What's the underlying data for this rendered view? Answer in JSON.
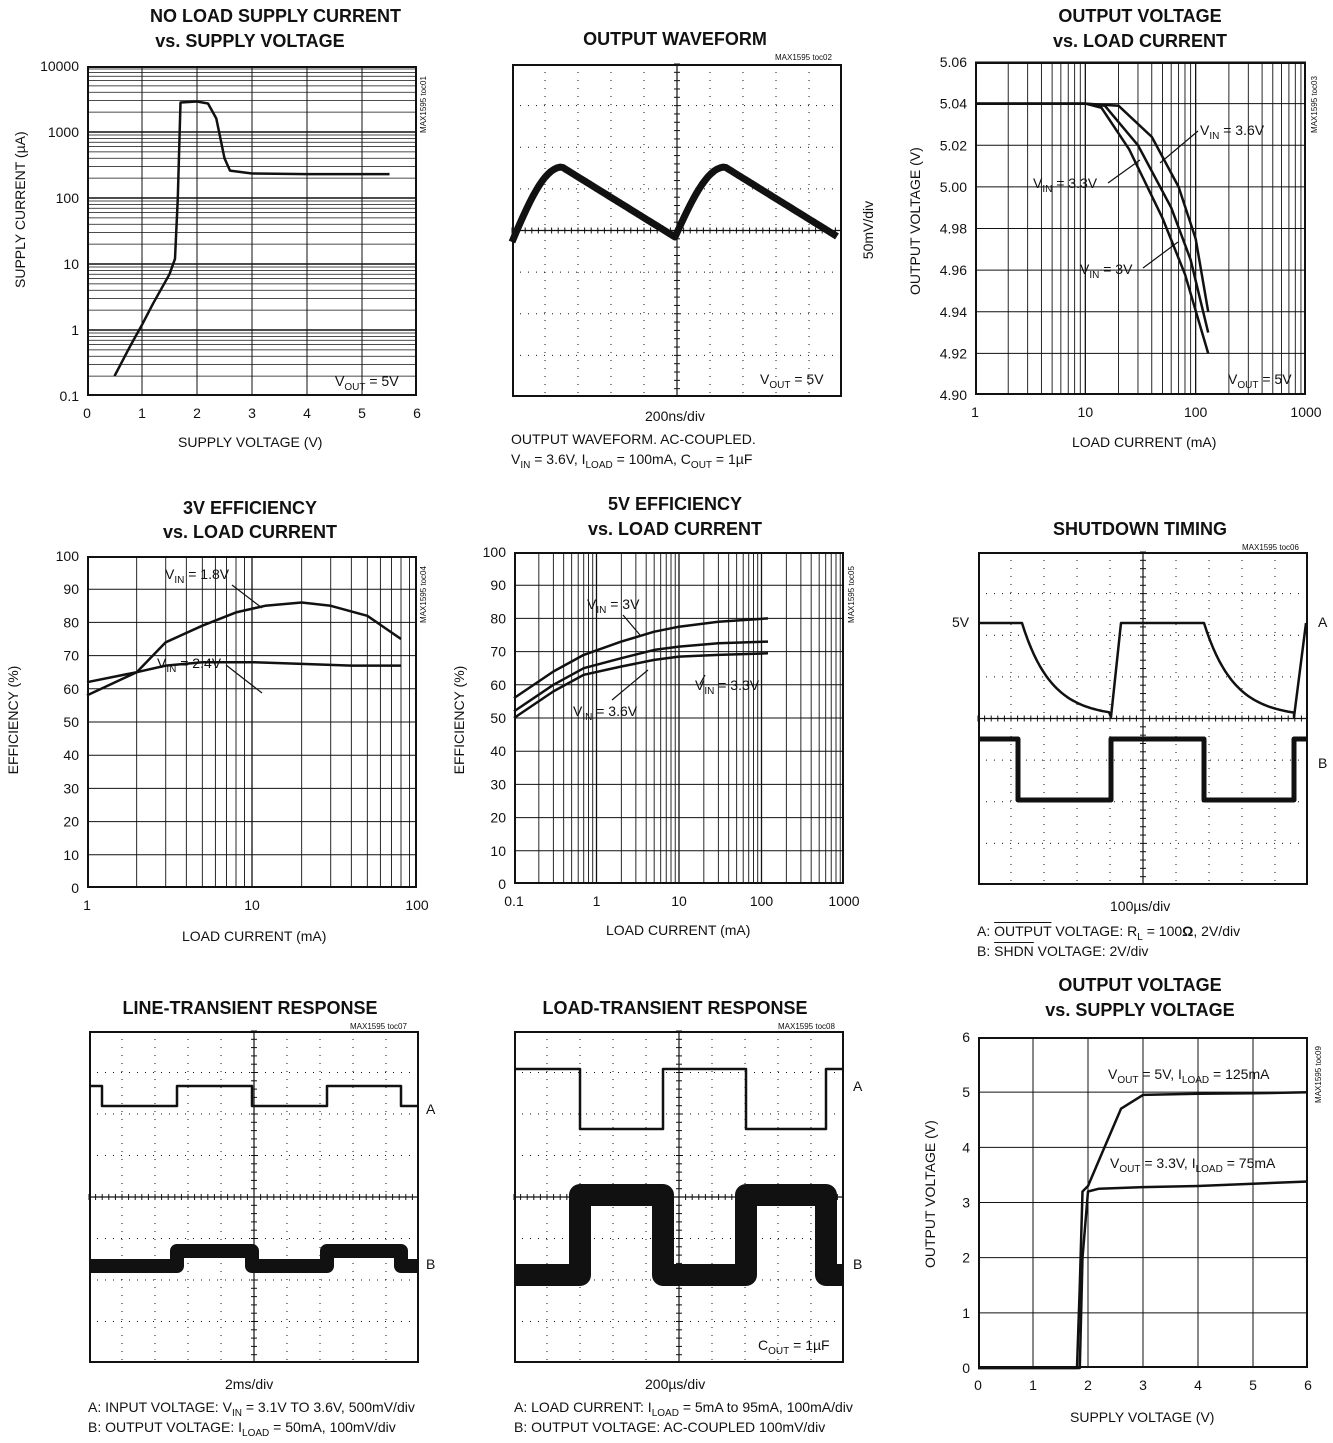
{
  "charts": {
    "toc01": {
      "title_l1": "NO LOAD SUPPLY CURRENT",
      "title_l2": "vs. SUPPLY VOLTAGE",
      "toc": "MAX1595 toc01",
      "xlabel": "SUPPLY VOLTAGE (V)",
      "ylabel": "SUPPLY CURRENT (µA)",
      "xticks": [
        "0",
        "1",
        "2",
        "3",
        "4",
        "5",
        "6"
      ],
      "yticks": [
        "10000",
        "1000",
        "100",
        "10",
        "1",
        "0.1"
      ],
      "note": "VOUT = 5V"
    },
    "toc02": {
      "title": "OUTPUT WAVEFORM",
      "toc": "MAX1595 toc02",
      "scale_right": "50mV/div",
      "timebase": "200ns/div",
      "note": "VOUT = 5V",
      "cap1": "OUTPUT WAVEFORM. AC-COUPLED.",
      "cap2": "VIN = 3.6V, ILOAD = 100mA, COUT = 1µF"
    },
    "toc03": {
      "title_l1": "OUTPUT VOLTAGE",
      "title_l2": "vs. LOAD CURRENT",
      "toc": "MAX1595 toc03",
      "xlabel": "LOAD CURRENT (mA)",
      "ylabel": "OUTPUT VOLTAGE (V)",
      "xticks": [
        "1",
        "10",
        "100",
        "1000"
      ],
      "yticks": [
        "5.06",
        "5.04",
        "5.02",
        "5.00",
        "4.98",
        "4.96",
        "4.94",
        "4.92",
        "4.90"
      ],
      "note": "VOUT = 5V"
    },
    "toc04": {
      "title_l1": "3V EFFICIENCY",
      "title_l2": "vs. LOAD CURRENT",
      "toc": "MAX1595 toc04",
      "xlabel": "LOAD CURRENT (mA)",
      "ylabel": "EFFICIENCY (%)",
      "xticks": [
        "1",
        "10",
        "100"
      ],
      "yticks": [
        "100",
        "90",
        "80",
        "70",
        "60",
        "50",
        "40",
        "30",
        "20",
        "10",
        "0"
      ]
    },
    "toc05": {
      "title_l1": "5V EFFICIENCY",
      "title_l2": "vs. LOAD CURRENT",
      "toc": "MAX1595 toc05",
      "xlabel": "LOAD CURRENT (mA)",
      "ylabel": "EFFICIENCY (%)",
      "xticks": [
        "0.1",
        "1",
        "10",
        "100",
        "1000"
      ],
      "yticks": [
        "100",
        "90",
        "80",
        "70",
        "60",
        "50",
        "40",
        "30",
        "20",
        "10",
        "0"
      ]
    },
    "toc06": {
      "title": "SHUTDOWN TIMING",
      "toc": "MAX1595 toc06",
      "level_5v": "5V",
      "ch_a": "A",
      "ch_b": "B",
      "timebase": "100µs/div",
      "cap1": "A: OUTPUT VOLTAGE: RL = 100Ω, 2V/div",
      "cap2": "B: SHDN VOLTAGE: 2V/div"
    },
    "toc07": {
      "title": "LINE-TRANSIENT RESPONSE",
      "toc": "MAX1595 toc07",
      "ch_a": "A",
      "ch_b": "B",
      "timebase": "2ms/div",
      "cap1": "A: INPUT VOLTAGE: VIN = 3.1V TO 3.6V, 500mV/div",
      "cap2": "B: OUTPUT VOLTAGE: ILOAD = 50mA, 100mV/div"
    },
    "toc08": {
      "title": "LOAD-TRANSIENT RESPONSE",
      "toc": "MAX1595 toc08",
      "ch_a": "A",
      "ch_b": "B",
      "note": "COUT = 1µF",
      "timebase": "200µs/div",
      "cap1": "A: LOAD CURRENT: ILOAD = 5mA to 95mA, 100mA/div",
      "cap2": "B: OUTPUT VOLTAGE: AC-COUPLED 100mV/div"
    },
    "toc09": {
      "title_l1": "OUTPUT VOLTAGE",
      "title_l2": "vs. SUPPLY VOLTAGE",
      "toc": "MAX1595 toc09",
      "xlabel": "SUPPLY VOLTAGE (V)",
      "ylabel": "OUTPUT VOLTAGE (V)",
      "xticks": [
        "0",
        "1",
        "2",
        "3",
        "4",
        "5",
        "6"
      ],
      "yticks": [
        "6",
        "5",
        "4",
        "3",
        "2",
        "1",
        "0"
      ]
    }
  },
  "chart_data": [
    {
      "type": "line",
      "title": "NO LOAD SUPPLY CURRENT vs. SUPPLY VOLTAGE",
      "xlabel": "SUPPLY VOLTAGE (V)",
      "ylabel": "SUPPLY CURRENT (µA)",
      "xlim": [
        0,
        6
      ],
      "ylim": [
        0.1,
        10000
      ],
      "yscale": "log",
      "series": [
        {
          "name": "VOUT = 5V",
          "x": [
            0.5,
            0.8,
            1.0,
            1.2,
            1.5,
            1.6,
            1.65,
            1.7,
            2.0,
            2.2,
            2.35,
            2.5,
            2.6,
            3.0,
            4.0,
            5.0,
            5.5
          ],
          "y": [
            0.2,
            0.6,
            1.2,
            2.5,
            7,
            12,
            100,
            2800,
            2900,
            2700,
            1600,
            400,
            260,
            235,
            230,
            230,
            230
          ]
        }
      ]
    },
    {
      "type": "line",
      "title": "OUTPUT WAVEFORM",
      "xlabel": "200ns/div",
      "ylabel": "50mV/div",
      "note": "AC-coupled"
    },
    {
      "type": "line",
      "title": "OUTPUT VOLTAGE vs. LOAD CURRENT",
      "xlabel": "LOAD CURRENT (mA)",
      "ylabel": "OUTPUT VOLTAGE (V)",
      "xscale": "log",
      "xlim": [
        1,
        1000
      ],
      "ylim": [
        4.9,
        5.06
      ],
      "series": [
        {
          "name": "VIN = 3.6V",
          "x": [
            1,
            10,
            20,
            40,
            70,
            100,
            130
          ],
          "y": [
            5.04,
            5.04,
            5.039,
            5.024,
            5.0,
            4.975,
            4.94
          ]
        },
        {
          "name": "VIN = 3.3V",
          "x": [
            1,
            10,
            15,
            30,
            60,
            90,
            130
          ],
          "y": [
            5.04,
            5.04,
            5.039,
            5.02,
            4.99,
            4.965,
            4.93
          ]
        },
        {
          "name": "VIN = 3V",
          "x": [
            1,
            10,
            14,
            25,
            50,
            80,
            130
          ],
          "y": [
            5.04,
            5.04,
            5.038,
            5.018,
            4.985,
            4.958,
            4.92
          ]
        }
      ]
    },
    {
      "type": "line",
      "title": "3V EFFICIENCY vs. LOAD CURRENT",
      "xlabel": "LOAD CURRENT (mA)",
      "ylabel": "EFFICIENCY (%)",
      "xscale": "log",
      "xlim": [
        1,
        100
      ],
      "ylim": [
        0,
        100
      ],
      "series": [
        {
          "name": "VIN = 1.8V",
          "x": [
            1,
            2,
            3,
            5,
            8,
            12,
            20,
            30,
            50,
            80
          ],
          "y": [
            58,
            65,
            74,
            79,
            83,
            85,
            86,
            85,
            82,
            75
          ]
        },
        {
          "name": "VIN = 2.4V",
          "x": [
            1,
            2,
            3,
            5,
            10,
            20,
            40,
            80
          ],
          "y": [
            62,
            65,
            67,
            68,
            68,
            67.5,
            67,
            67
          ]
        }
      ]
    },
    {
      "type": "line",
      "title": "5V EFFICIENCY vs. LOAD CURRENT",
      "xlabel": "LOAD CURRENT (mA)",
      "ylabel": "EFFICIENCY (%)",
      "xscale": "log",
      "xlim": [
        0.1,
        1000
      ],
      "ylim": [
        0,
        100
      ],
      "series": [
        {
          "name": "VIN = 3V",
          "x": [
            0.1,
            0.3,
            0.7,
            2,
            5,
            10,
            30,
            120
          ],
          "y": [
            56,
            64,
            69,
            73,
            76,
            77.5,
            79,
            80
          ]
        },
        {
          "name": "VIN = 3.3V",
          "x": [
            0.1,
            0.3,
            0.7,
            2,
            5,
            10,
            30,
            120
          ],
          "y": [
            52,
            60,
            65,
            68,
            70.5,
            71.5,
            72.5,
            73
          ]
        },
        {
          "name": "VIN = 3.6V",
          "x": [
            0.1,
            0.3,
            0.7,
            2,
            5,
            10,
            30,
            120
          ],
          "y": [
            50,
            58,
            63,
            65.5,
            67.5,
            68.5,
            69,
            69.5
          ]
        }
      ]
    },
    {
      "type": "line",
      "title": "SHUTDOWN TIMING",
      "xlabel": "100µs/div",
      "channels": [
        "A: OUTPUT VOLTAGE",
        "B: SHDN VOLTAGE"
      ]
    },
    {
      "type": "line",
      "title": "LINE-TRANSIENT RESPONSE",
      "xlabel": "2ms/div",
      "channels": [
        "A: INPUT VOLTAGE",
        "B: OUTPUT VOLTAGE"
      ]
    },
    {
      "type": "line",
      "title": "LOAD-TRANSIENT RESPONSE",
      "xlabel": "200µs/div",
      "channels": [
        "A: LOAD CURRENT",
        "B: OUTPUT VOLTAGE"
      ]
    },
    {
      "type": "line",
      "title": "OUTPUT VOLTAGE vs. SUPPLY VOLTAGE",
      "xlabel": "SUPPLY VOLTAGE (V)",
      "ylabel": "OUTPUT VOLTAGE (V)",
      "xlim": [
        0,
        6
      ],
      "ylim": [
        0,
        6
      ],
      "series": [
        {
          "name": "VOUT = 5V, ILOAD = 125mA",
          "x": [
            0,
            1.8,
            1.85,
            1.9,
            2.0,
            2.3,
            2.6,
            3.0,
            4.0,
            5.0,
            6.0
          ],
          "y": [
            0,
            0,
            1.5,
            3.2,
            3.3,
            4.0,
            4.7,
            4.95,
            4.97,
            4.98,
            5.0
          ]
        },
        {
          "name": "VOUT = 3.3V, ILOAD = 75mA",
          "x": [
            0,
            1.85,
            1.9,
            2.0,
            2.2,
            3.0,
            4.0,
            5.0,
            6.0
          ],
          "y": [
            0,
            0,
            2.0,
            3.2,
            3.25,
            3.28,
            3.3,
            3.34,
            3.38
          ]
        }
      ]
    }
  ]
}
